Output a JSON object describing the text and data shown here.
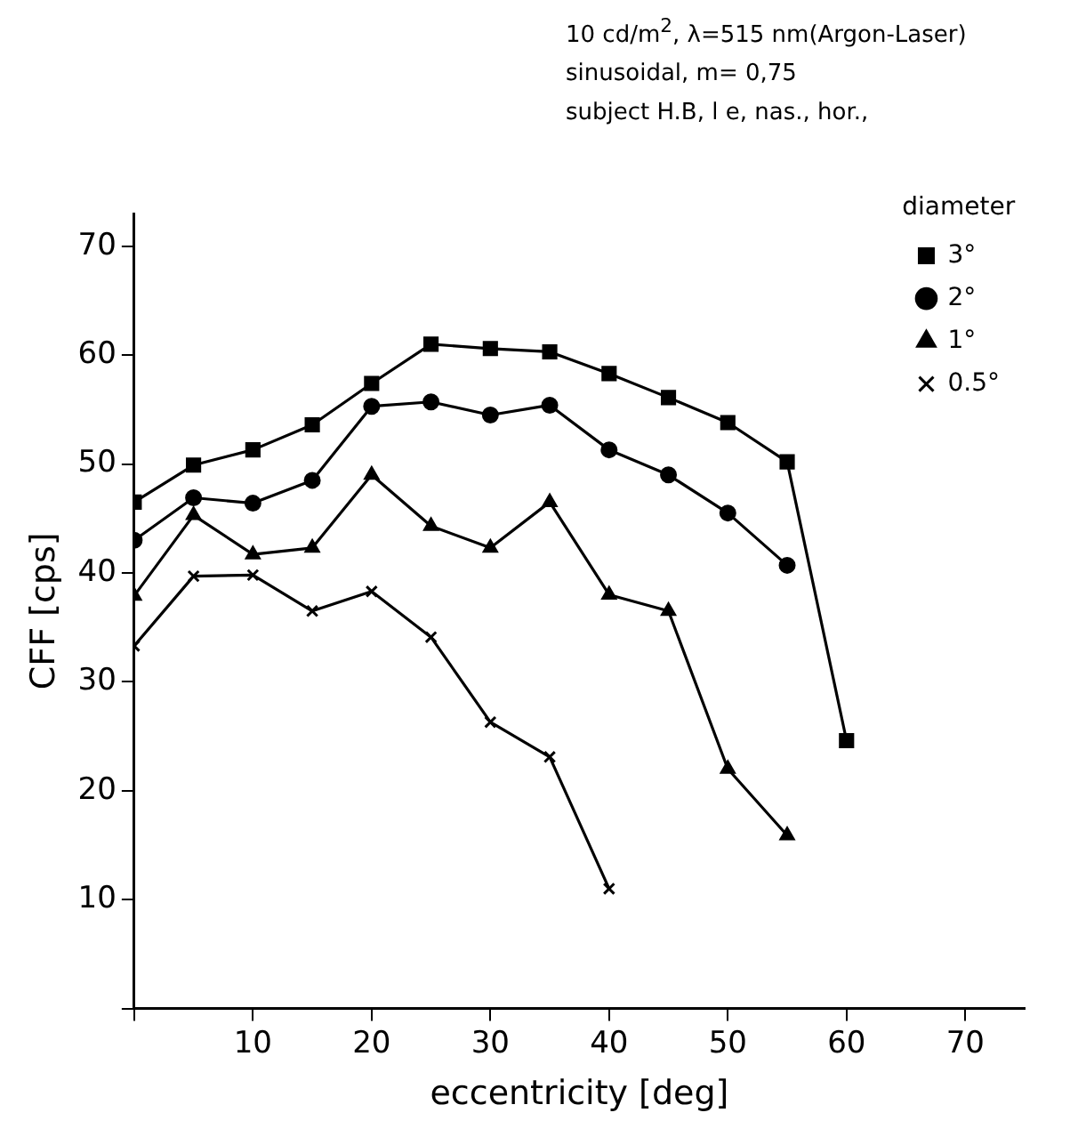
{
  "chart_data": {
    "type": "line",
    "annotations": [
      "10 cd/m$^{2}$, λ=515 nm(Argon-Laser)",
      "sinusoidal,  m= 0,75",
      "subject H.B, l e, nas., hor.,"
    ],
    "xlabel": "eccentricity [deg]",
    "ylabel": "CFF [cps]",
    "legend_title": "diameter",
    "legend": "top right",
    "grid": false,
    "x": [
      0,
      5,
      10,
      15,
      20,
      25,
      30,
      35,
      40,
      45,
      50,
      55,
      60
    ],
    "xlim": [
      0,
      75
    ],
    "xticks": [
      {
        "value": 0,
        "label": null
      },
      10,
      20,
      30,
      40,
      50,
      60,
      70
    ],
    "ylim": [
      0,
      73
    ],
    "yticks": [
      {
        "value": 0,
        "label": null
      },
      10,
      20,
      30,
      40,
      50,
      60,
      70
    ],
    "series": [
      {
        "name": "3°",
        "color": "#000000",
        "marker": "square",
        "values": [
          46.5,
          49.9,
          51.3,
          53.6,
          57.4,
          61,
          60.6,
          60.3,
          58.3,
          56.1,
          53.8,
          50.2,
          24.6
        ]
      },
      {
        "name": "2°",
        "color": "#000000",
        "marker": "circle",
        "values": [
          43,
          46.9,
          46.4,
          48.5,
          55.3,
          55.7,
          54.5,
          55.4,
          51.3,
          49,
          45.5,
          40.7,
          null
        ]
      },
      {
        "name": "1°",
        "color": "#000000",
        "marker": "triangle",
        "values": [
          37.9,
          45.3,
          41.7,
          42.3,
          49,
          44.3,
          42.3,
          46.5,
          38,
          36.5,
          22,
          15.9,
          null
        ]
      },
      {
        "name": "0.5°",
        "color": "#000000",
        "marker": "cross",
        "values": [
          33.3,
          39.7,
          39.8,
          36.5,
          38.3,
          34.1,
          26.3,
          23.1,
          11,
          null,
          null,
          null,
          null
        ]
      }
    ]
  }
}
